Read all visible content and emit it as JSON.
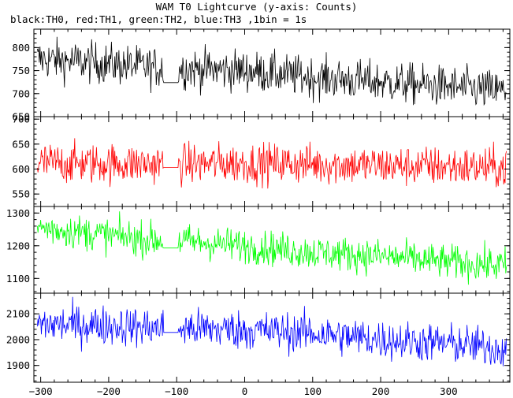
{
  "chart_data": {
    "type": "line",
    "title": "WAM T0 Lightcurve (y-axis: Counts)",
    "subtitle": "black:TH0, red:TH1, green:TH2, blue:TH3 ,1bin = 1s",
    "xlim": [
      -310,
      390
    ],
    "x_ticks": [
      -300,
      -200,
      -100,
      0,
      100,
      200,
      300
    ],
    "x_tick_labels": [
      "−300",
      "−200",
      "−100",
      "0",
      "100",
      "200",
      "300"
    ],
    "gap": {
      "start": -120,
      "end": -97
    },
    "grid": false,
    "panels": [
      {
        "series": "TH0",
        "color": "#000000",
        "ylim": [
          650,
          840
        ],
        "y_ticks": [
          650,
          700,
          750,
          800
        ],
        "y_tick_labels": [
          "650",
          "700",
          "750",
          "800"
        ],
        "gap_level": 724,
        "trend": [
          [
            -300,
            775
          ],
          [
            -200,
            765
          ],
          [
            -120,
            755
          ],
          [
            -97,
            755
          ],
          [
            0,
            750
          ],
          [
            100,
            735
          ],
          [
            200,
            725
          ],
          [
            300,
            715
          ],
          [
            385,
            705
          ]
        ],
        "noise": 22
      },
      {
        "series": "TH1",
        "color": "#ff0000",
        "ylim": [
          525,
          705
        ],
        "y_ticks": [
          550,
          600,
          650,
          700
        ],
        "y_tick_labels": [
          "550",
          "600",
          "650",
          "700"
        ],
        "gap_level": 603,
        "trend": [
          [
            -300,
            612
          ],
          [
            -120,
            610
          ],
          [
            -97,
            610
          ],
          [
            0,
            612
          ],
          [
            100,
            610
          ],
          [
            200,
            607
          ],
          [
            300,
            605
          ],
          [
            385,
            602
          ]
        ],
        "noise": 20
      },
      {
        "series": "TH2",
        "color": "#00ff00",
        "ylim": [
          1055,
          1320
        ],
        "y_ticks": [
          1100,
          1200,
          1300
        ],
        "y_tick_labels": [
          "1100",
          "1200",
          "1300"
        ],
        "gap_level": 1193,
        "trend": [
          [
            -300,
            1255
          ],
          [
            -200,
            1232
          ],
          [
            -120,
            1215
          ],
          [
            -97,
            1215
          ],
          [
            0,
            1200
          ],
          [
            100,
            1180
          ],
          [
            200,
            1168
          ],
          [
            300,
            1150
          ],
          [
            385,
            1140
          ]
        ],
        "noise": 26
      },
      {
        "series": "TH3",
        "color": "#0000ff",
        "ylim": [
          1835,
          2180
        ],
        "y_ticks": [
          1900,
          2000,
          2100
        ],
        "y_tick_labels": [
          "1900",
          "2000",
          "2100"
        ],
        "gap_level": 2028,
        "trend": [
          [
            -300,
            2060
          ],
          [
            -200,
            2055
          ],
          [
            -120,
            2045
          ],
          [
            -97,
            2045
          ],
          [
            0,
            2038
          ],
          [
            100,
            2025
          ],
          [
            200,
            2000
          ],
          [
            300,
            1985
          ],
          [
            385,
            1965
          ]
        ],
        "noise": 38
      }
    ]
  }
}
